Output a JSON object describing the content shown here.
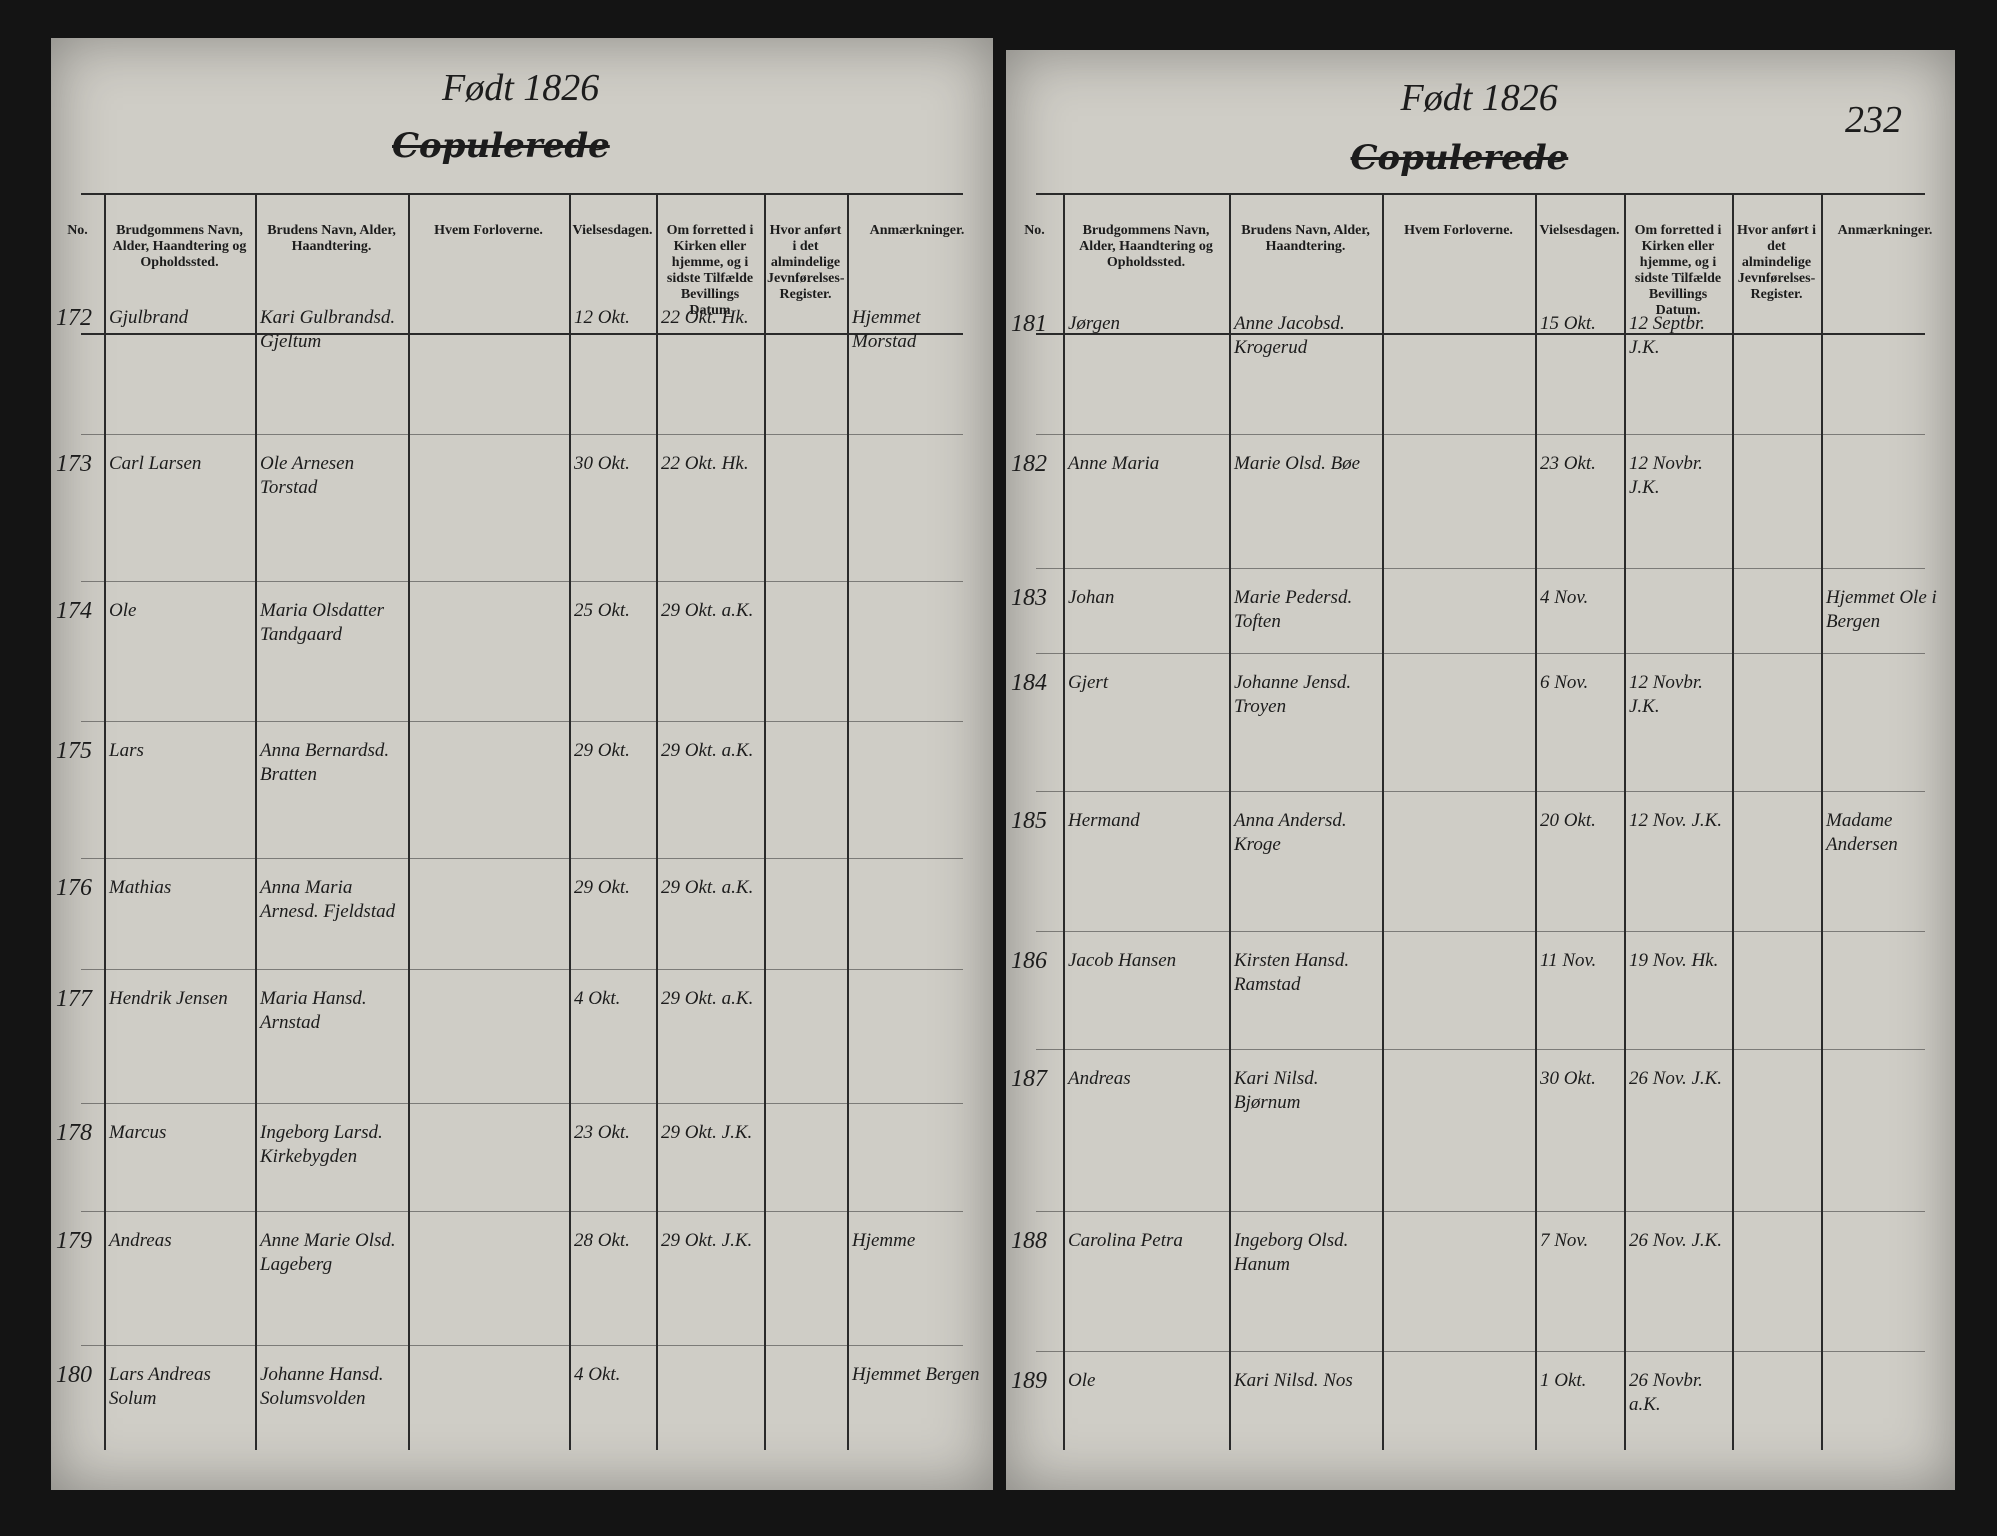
{
  "pages": [
    {
      "title": "Født 1826",
      "subtitle": "Copulerede",
      "columns": [
        "No.",
        "Brudgommens Navn, Alder, Haandtering og Opholdssted.",
        "Brudens Navn, Alder, Haandtering.",
        "Hvem Forloverne.",
        "Vielsesdagen.",
        "Om forretted i Kirken eller hjemme, og i sidste Tilfælde Bevillings Datum",
        "Hvor anført i det almindelige Jevnførelses-Register.",
        "Anmærkninger."
      ],
      "rows": [
        {
          "no": "172",
          "groom": "Gjulbrand",
          "bride": "Kari Gulbrandsd. Gjeltum",
          "date": "12 Okt.",
          "church": "22 Okt. Hk.",
          "notes": "Hjemmet Morstad"
        },
        {
          "no": "173",
          "groom": "Carl Larsen",
          "bride": "Ole Arnesen Torstad",
          "date": "30 Okt.",
          "church": "22 Okt. Hk."
        },
        {
          "no": "174",
          "groom": "Ole",
          "bride": "Maria Olsdatter Tandgaard",
          "date": "25 Okt.",
          "church": "29 Okt. a.K."
        },
        {
          "no": "175",
          "groom": "Lars",
          "bride": "Anna Bernardsd. Bratten",
          "date": "29 Okt.",
          "church": "29 Okt. a.K."
        },
        {
          "no": "176",
          "groom": "Mathias",
          "bride": "Anna Maria Arnesd. Fjeldstad",
          "date": "29 Okt.",
          "church": "29 Okt. a.K."
        },
        {
          "no": "177",
          "groom": "Hendrik Jensen",
          "bride": "Maria Hansd. Arnstad",
          "date": "4 Okt.",
          "church": "29 Okt. a.K."
        },
        {
          "no": "178",
          "groom": "Marcus",
          "bride": "Ingeborg Larsd. Kirkebygden",
          "date": "23 Okt.",
          "church": "29 Okt. J.K."
        },
        {
          "no": "179",
          "groom": "Andreas",
          "bride": "Anne Marie Olsd. Lageberg",
          "date": "28 Okt.",
          "church": "29 Okt. J.K.",
          "notes": "Hjemme"
        },
        {
          "no": "180",
          "groom": "Lars Andreas Solum",
          "bride": "Johanne Hansd. Solumsvolden",
          "date": "4 Okt.",
          "notes": "Hjemmet Bergen"
        }
      ]
    },
    {
      "title": "Født 1826",
      "subtitle": "Copulerede",
      "page_number": "232",
      "columns": [
        "No.",
        "Brudgommens Navn, Alder, Haandtering og Opholdssted.",
        "Brudens Navn, Alder, Haandtering.",
        "Hvem Forloverne.",
        "Vielsesdagen.",
        "Om forretted i Kirken eller hjemme, og i sidste Tilfælde Bevillings Datum.",
        "Hvor anført i det almindelige Jevnførelses-Register.",
        "Anmærkninger."
      ],
      "rows": [
        {
          "no": "181",
          "groom": "Jørgen",
          "bride": "Anne Jacobsd. Krogerud",
          "date": "15 Okt.",
          "church": "12 Septbr. J.K."
        },
        {
          "no": "182",
          "groom": "Anne Maria",
          "bride": "Marie Olsd. Bøe",
          "date": "23 Okt.",
          "church": "12 Novbr. J.K."
        },
        {
          "no": "183",
          "groom": "Johan",
          "bride": "Marie Pedersd. Toften",
          "date": "4 Nov.",
          "notes": "Hjemmet Ole i Bergen"
        },
        {
          "no": "184",
          "groom": "Gjert",
          "bride": "Johanne Jensd. Troyen",
          "date": "6 Nov.",
          "church": "12 Novbr. J.K."
        },
        {
          "no": "185",
          "groom": "Hermand",
          "bride": "Anna Andersd. Kroge",
          "date": "20 Okt.",
          "church": "12 Nov. J.K.",
          "notes": "Madame Andersen"
        },
        {
          "no": "186",
          "groom": "Jacob Hansen",
          "bride": "Kirsten Hansd. Ramstad",
          "date": "11 Nov.",
          "church": "19 Nov. Hk."
        },
        {
          "no": "187",
          "groom": "Andreas",
          "bride": "Kari Nilsd. Bjørnum",
          "date": "30 Okt.",
          "church": "26 Nov. J.K."
        },
        {
          "no": "188",
          "groom": "Carolina Petra",
          "bride": "Ingeborg Olsd. Hanum",
          "date": "7 Nov.",
          "church": "26 Nov. J.K."
        },
        {
          "no": "189",
          "groom": "Ole",
          "bride": "Kari Nilsd. Nos",
          "date": "1 Okt.",
          "church": "26 Novbr. a.K."
        }
      ]
    }
  ]
}
